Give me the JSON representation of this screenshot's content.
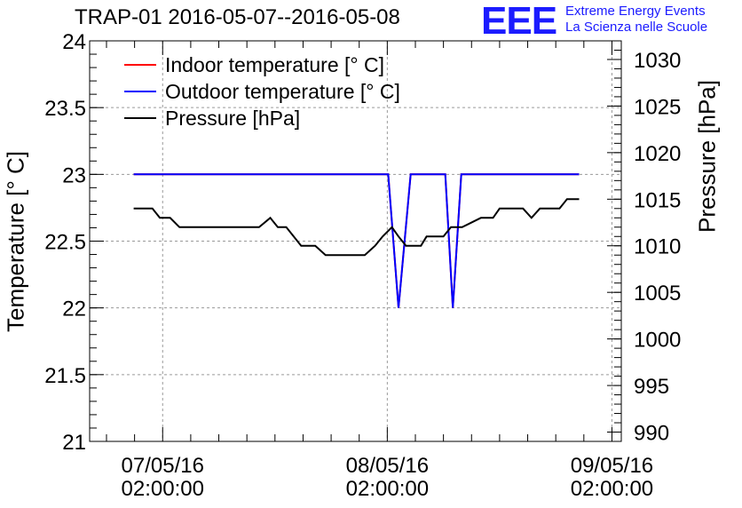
{
  "title": "TRAP-01 2016-05-07--2016-05-08",
  "logo": {
    "mark": "EEE",
    "line1": "Extreme Energy Events",
    "line2": "La Scienza nelle Scuole",
    "color": "#1b1bff"
  },
  "chart_data": {
    "type": "line",
    "title": "TRAP-01 2016-05-07--2016-05-08",
    "xlabel": "",
    "ylabel_left": "Temperature [° C]",
    "ylabel_right": "Pressure [hPa]",
    "x_ticks": [
      {
        "line1": "07/05/16",
        "line2": "02:00:00",
        "t": 0
      },
      {
        "line1": "08/05/16",
        "line2": "02:00:00",
        "t": 24
      },
      {
        "line1": "09/05/16",
        "line2": "02:00:00",
        "t": 48
      }
    ],
    "x_units": "hours from 07/05/16 02:00:00",
    "xlim": [
      -7.8,
      49
    ],
    "ylim_left": [
      21,
      24
    ],
    "yticks_left": [
      "21",
      "21.5",
      "22",
      "22.5",
      "23",
      "23.5",
      "24"
    ],
    "ylim_right": [
      989,
      1032
    ],
    "yticks_right": [
      "990",
      "995",
      "1000",
      "1005",
      "1010",
      "1015",
      "1020",
      "1025",
      "1030"
    ],
    "grid": true,
    "legend_position": "top-left",
    "series": [
      {
        "name": "Indoor temperature [° C]",
        "color": "#ff0000",
        "axis": "left",
        "points": [
          [
            -3.1,
            23
          ],
          [
            24.1,
            23
          ],
          [
            25.2,
            22
          ],
          [
            26.5,
            23
          ],
          [
            30.2,
            23
          ],
          [
            31.0,
            22
          ],
          [
            31.9,
            23
          ],
          [
            44.5,
            23
          ]
        ]
      },
      {
        "name": "Outdoor temperature [° C]",
        "color": "#0000ff",
        "axis": "left",
        "points": [
          [
            -3.1,
            23
          ],
          [
            24.1,
            23
          ],
          [
            25.2,
            22
          ],
          [
            26.5,
            23
          ],
          [
            30.2,
            23
          ],
          [
            31.0,
            22
          ],
          [
            31.9,
            23
          ],
          [
            44.5,
            23
          ]
        ]
      },
      {
        "name": "Pressure [hPa]",
        "color": "#000000",
        "axis": "right",
        "points": [
          [
            -3.1,
            1014
          ],
          [
            -1.1,
            1014
          ],
          [
            -0.3,
            1013
          ],
          [
            0.8,
            1013
          ],
          [
            1.8,
            1012
          ],
          [
            10.3,
            1012
          ],
          [
            11.5,
            1013
          ],
          [
            12.3,
            1012
          ],
          [
            13.2,
            1012
          ],
          [
            14.8,
            1010
          ],
          [
            16.3,
            1010
          ],
          [
            17.4,
            1009
          ],
          [
            21.6,
            1009
          ],
          [
            22.7,
            1010
          ],
          [
            23.5,
            1011
          ],
          [
            24.5,
            1012
          ],
          [
            25.2,
            1011
          ],
          [
            26.0,
            1010
          ],
          [
            27.6,
            1010
          ],
          [
            28.2,
            1011
          ],
          [
            30.0,
            1011
          ],
          [
            30.8,
            1012
          ],
          [
            32.0,
            1012
          ],
          [
            34.0,
            1013
          ],
          [
            35.3,
            1013
          ],
          [
            36.0,
            1014
          ],
          [
            38.5,
            1014
          ],
          [
            39.4,
            1013
          ],
          [
            40.3,
            1014
          ],
          [
            42.4,
            1014
          ],
          [
            43.2,
            1015
          ],
          [
            44.5,
            1015
          ]
        ]
      }
    ]
  }
}
